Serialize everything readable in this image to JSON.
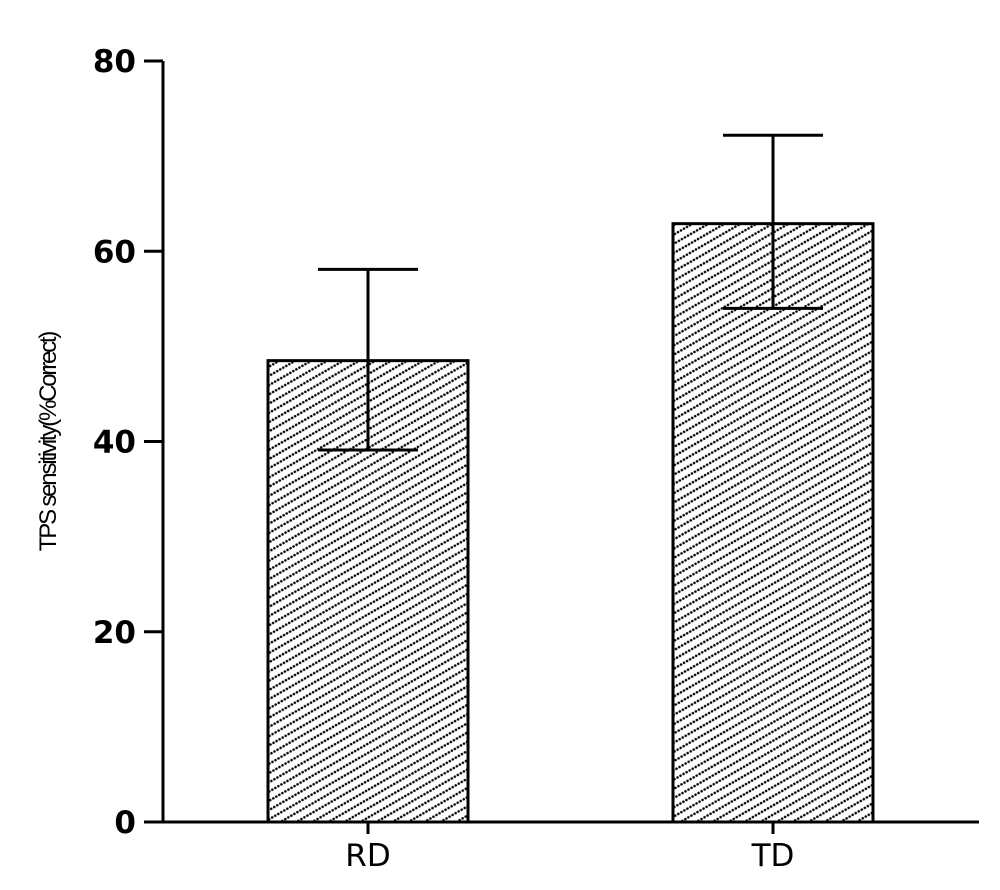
{
  "chart_data": {
    "type": "bar",
    "title": "",
    "xlabel": "",
    "ylabel": "TPS sensitivity(%Correct)",
    "categories": [
      "RD",
      "TD"
    ],
    "values": [
      48.5,
      62.9
    ],
    "error_upper": [
      58.1,
      72.2
    ],
    "error_lower": [
      39.1,
      54.0
    ],
    "error": [
      9.5,
      9.2
    ],
    "ylim": [
      0,
      80
    ],
    "yticks": [
      0,
      20,
      40,
      60,
      80
    ],
    "ytick_labels": [
      "0",
      "20",
      "40",
      "60",
      "80"
    ],
    "grid": false,
    "legend": null,
    "bar_fill": "diagonal dotted hatch",
    "colors": {
      "bar_edge": "#000000",
      "hatch": "#000000",
      "background": "#ffffff",
      "axis": "#000000"
    }
  }
}
